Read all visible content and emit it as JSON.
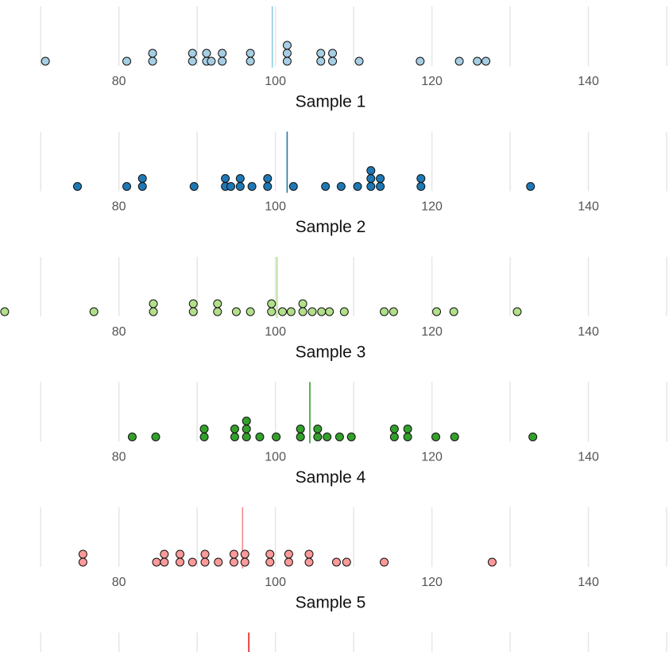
{
  "chart_data": [
    {
      "type": "dotplot",
      "xlabel": "Sample 1",
      "color": "#a6cee3",
      "mean_color": "#8ecae6",
      "values": [
        70.6,
        81.0,
        84.3,
        84.3,
        89.4,
        89.4,
        91.2,
        91.2,
        91.8,
        93.2,
        93.2,
        96.8,
        96.8,
        101.5,
        101.5,
        101.5,
        105.8,
        105.8,
        107.3,
        107.3,
        110.7,
        118.5,
        123.5,
        125.8,
        126.9
      ],
      "mean": 99.6,
      "xlim": [
        64.8,
        150.3
      ],
      "xticks": [
        80,
        100,
        120,
        140
      ],
      "gridlines": [
        70,
        80,
        90,
        100,
        110,
        120,
        130,
        140,
        150
      ]
    },
    {
      "type": "dotplot",
      "xlabel": "Sample 2",
      "color": "#1f78b4",
      "mean_color": "#1f78b4",
      "values": [
        74.7,
        81.0,
        83.0,
        83.0,
        89.6,
        93.6,
        93.6,
        94.3,
        95.5,
        95.5,
        97.0,
        99.0,
        99.0,
        102.3,
        106.4,
        108.4,
        110.5,
        112.2,
        112.2,
        112.2,
        113.4,
        113.4,
        118.6,
        118.6,
        132.6
      ],
      "mean": 101.5,
      "xlim": [
        64.8,
        150.3
      ],
      "xticks": [
        80,
        100,
        120,
        140
      ],
      "gridlines": [
        70,
        80,
        90,
        100,
        110,
        120,
        130,
        140,
        150
      ]
    },
    {
      "type": "dotplot",
      "xlabel": "Sample 3",
      "color": "#b2df8a",
      "mean_color": "#b2df8a",
      "values": [
        65.4,
        76.8,
        84.4,
        84.4,
        89.5,
        89.5,
        92.6,
        92.6,
        95.0,
        96.8,
        99.5,
        99.5,
        100.9,
        102.0,
        103.5,
        103.5,
        104.7,
        105.9,
        106.9,
        108.8,
        113.9,
        115.1,
        120.6,
        122.8,
        130.9
      ],
      "mean": 100.2,
      "xlim": [
        64.8,
        150.3
      ],
      "xticks": [
        80,
        100,
        120,
        140
      ],
      "gridlines": [
        70,
        80,
        90,
        100,
        110,
        120,
        130,
        140,
        150
      ]
    },
    {
      "type": "dotplot",
      "xlabel": "Sample 4",
      "color": "#33a02c",
      "mean_color": "#33a02c",
      "values": [
        81.7,
        84.7,
        90.9,
        90.9,
        94.8,
        94.8,
        96.3,
        96.3,
        96.3,
        98.0,
        100.1,
        103.2,
        103.2,
        105.4,
        105.4,
        106.6,
        108.2,
        109.7,
        115.2,
        115.2,
        116.9,
        116.9,
        120.5,
        122.9,
        132.9
      ],
      "mean": 104.4,
      "xlim": [
        64.8,
        150.3
      ],
      "xticks": [
        80,
        100,
        120,
        140
      ],
      "gridlines": [
        70,
        80,
        90,
        100,
        110,
        120,
        130,
        140,
        150
      ]
    },
    {
      "type": "dotplot",
      "xlabel": "Sample 5",
      "color": "#fb9a99",
      "mean_color": "#f48a89",
      "values": [
        75.4,
        75.4,
        84.8,
        85.8,
        85.8,
        87.8,
        87.8,
        89.4,
        91.0,
        91.0,
        92.7,
        94.7,
        94.7,
        96.1,
        96.1,
        99.3,
        99.3,
        101.7,
        101.7,
        104.3,
        104.3,
        107.8,
        109.1,
        113.9,
        127.7
      ],
      "mean": 95.8,
      "xlim": [
        64.8,
        150.3
      ],
      "xticks": [
        80,
        100,
        120,
        140
      ],
      "gridlines": [
        70,
        80,
        90,
        100,
        110,
        120,
        130,
        140,
        150
      ]
    },
    {
      "type": "dotplot",
      "color": "#e31a1c",
      "mean_color": "#e31a1c",
      "values": [],
      "mean": 96.6,
      "xlim": [
        64.8,
        150.3
      ],
      "gridlines": [
        70,
        80,
        90,
        100,
        110,
        120,
        130,
        140,
        150
      ]
    }
  ]
}
